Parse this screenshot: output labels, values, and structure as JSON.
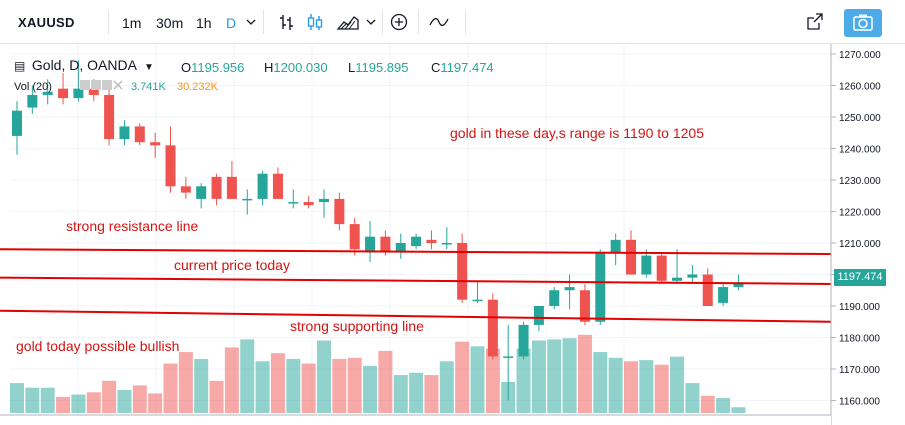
{
  "toolbar": {
    "symbol": "XAUUSD",
    "timeframes": [
      "1m",
      "30m",
      "1h",
      "D"
    ],
    "active_timeframe": "D"
  },
  "legend": {
    "title": "Gold, D, OANDA",
    "open_label": "O",
    "open": "1195.956",
    "high_label": "H",
    "high": "1200.030",
    "low_label": "L",
    "low": "1195.895",
    "close_label": "C",
    "close": "1197.474",
    "volume_label": "Vol (20)",
    "volume_value": "3.741K",
    "volume_ma": "30.232K"
  },
  "price_axis": {
    "ticks": [
      "1270.000",
      "1260.000",
      "1250.000",
      "1240.000",
      "1230.000",
      "1220.000",
      "1210.000",
      "1200.000",
      "1190.000",
      "1180.000",
      "1170.000",
      "1160.000"
    ],
    "current_price": "1197.474"
  },
  "annotations": {
    "range_note": "gold in these day,s range is 1190  to 1205",
    "resistance": "strong resistance line",
    "current": "current price today",
    "support": "strong supporting line",
    "bullish": "gold today possible bullish"
  },
  "colors": {
    "up": "#26a69a",
    "down": "#ef5350",
    "line": "#e50000",
    "accent": "#2196f3"
  },
  "chart_data": {
    "type": "candlestick",
    "ylim": [
      1155,
      1272
    ],
    "candles": [
      {
        "o": 1244,
        "h": 1255,
        "l": 1238,
        "c": 1252
      },
      {
        "o": 1253,
        "h": 1260,
        "l": 1251,
        "c": 1257
      },
      {
        "o": 1257,
        "h": 1262,
        "l": 1254,
        "c": 1258
      },
      {
        "o": 1259,
        "h": 1264,
        "l": 1254,
        "c": 1256
      },
      {
        "o": 1256,
        "h": 1268,
        "l": 1255,
        "c": 1259
      },
      {
        "o": 1259,
        "h": 1262,
        "l": 1255,
        "c": 1257
      },
      {
        "o": 1257,
        "h": 1259,
        "l": 1241,
        "c": 1243
      },
      {
        "o": 1243,
        "h": 1249,
        "l": 1241,
        "c": 1247
      },
      {
        "o": 1247,
        "h": 1248,
        "l": 1241,
        "c": 1242
      },
      {
        "o": 1242,
        "h": 1245,
        "l": 1237,
        "c": 1241
      },
      {
        "o": 1241,
        "h": 1247,
        "l": 1226,
        "c": 1228
      },
      {
        "o": 1228,
        "h": 1231,
        "l": 1224,
        "c": 1226
      },
      {
        "o": 1224,
        "h": 1229,
        "l": 1221,
        "c": 1228
      },
      {
        "o": 1231,
        "h": 1232,
        "l": 1222,
        "c": 1224
      },
      {
        "o": 1231,
        "h": 1236,
        "l": 1224,
        "c": 1224
      },
      {
        "o": 1224,
        "h": 1227,
        "l": 1219,
        "c": 1224
      },
      {
        "o": 1224,
        "h": 1233,
        "l": 1222,
        "c": 1232
      },
      {
        "o": 1232,
        "h": 1234,
        "l": 1224,
        "c": 1224
      },
      {
        "o": 1223,
        "h": 1227,
        "l": 1221,
        "c": 1223
      },
      {
        "o": 1223,
        "h": 1225,
        "l": 1221,
        "c": 1222
      },
      {
        "o": 1223,
        "h": 1227,
        "l": 1218,
        "c": 1224
      },
      {
        "o": 1224,
        "h": 1226,
        "l": 1214,
        "c": 1216
      },
      {
        "o": 1216,
        "h": 1218,
        "l": 1206,
        "c": 1208
      },
      {
        "o": 1207,
        "h": 1217,
        "l": 1204,
        "c": 1212
      },
      {
        "o": 1212,
        "h": 1214,
        "l": 1206,
        "c": 1207
      },
      {
        "o": 1207,
        "h": 1213,
        "l": 1205,
        "c": 1210
      },
      {
        "o": 1209,
        "h": 1213,
        "l": 1208,
        "c": 1212
      },
      {
        "o": 1211,
        "h": 1214,
        "l": 1208,
        "c": 1210
      },
      {
        "o": 1210,
        "h": 1215,
        "l": 1208,
        "c": 1210
      },
      {
        "o": 1210,
        "h": 1213,
        "l": 1191,
        "c": 1192
      },
      {
        "o": 1192,
        "h": 1198,
        "l": 1191,
        "c": 1192
      },
      {
        "o": 1192,
        "h": 1194,
        "l": 1173,
        "c": 1174
      },
      {
        "o": 1174,
        "h": 1184,
        "l": 1160,
        "c": 1174
      },
      {
        "o": 1174,
        "h": 1185,
        "l": 1173,
        "c": 1184
      },
      {
        "o": 1184,
        "h": 1190,
        "l": 1182,
        "c": 1190
      },
      {
        "o": 1190,
        "h": 1196,
        "l": 1189,
        "c": 1195
      },
      {
        "o": 1195,
        "h": 1200,
        "l": 1189,
        "c": 1196
      },
      {
        "o": 1195,
        "h": 1197,
        "l": 1184,
        "c": 1185
      },
      {
        "o": 1185,
        "h": 1208,
        "l": 1184,
        "c": 1207
      },
      {
        "o": 1207,
        "h": 1213,
        "l": 1203,
        "c": 1211
      },
      {
        "o": 1211,
        "h": 1214,
        "l": 1200,
        "c": 1200
      },
      {
        "o": 1200,
        "h": 1208,
        "l": 1199,
        "c": 1206
      },
      {
        "o": 1206,
        "h": 1207,
        "l": 1197,
        "c": 1198
      },
      {
        "o": 1198,
        "h": 1208,
        "l": 1197,
        "c": 1199
      },
      {
        "o": 1199,
        "h": 1203,
        "l": 1197,
        "c": 1200
      },
      {
        "o": 1200,
        "h": 1202,
        "l": 1190,
        "c": 1190
      },
      {
        "o": 1191,
        "h": 1197,
        "l": 1190,
        "c": 1196
      },
      {
        "o": 1196,
        "h": 1200,
        "l": 1195,
        "c": 1197.474
      }
    ],
    "volume": [
      0,
      0,
      0,
      0,
      0,
      0,
      0,
      0,
      0,
      0,
      0,
      0,
      0,
      0,
      0,
      0,
      0,
      0,
      0,
      0,
      0,
      0,
      0,
      0,
      0,
      0,
      0,
      0,
      0,
      0,
      0,
      0,
      0,
      0,
      0,
      0,
      0,
      0,
      0,
      0,
      0,
      0,
      0,
      0,
      0,
      0,
      0,
      0
    ],
    "volume_rel": [
      26,
      22,
      22,
      14,
      16,
      18,
      28,
      20,
      24,
      17,
      43,
      53,
      47,
      28,
      57,
      64,
      45,
      52,
      47,
      43,
      63,
      47,
      48,
      41,
      54,
      33,
      35,
      33,
      45,
      62,
      58,
      56,
      27,
      56,
      63,
      64,
      65,
      68,
      53,
      48,
      45,
      46,
      42,
      49,
      26,
      15,
      13,
      5
    ],
    "horizontal_lines": [
      {
        "label": "strong resistance line",
        "left": 1208.0,
        "right": 1206.5
      },
      {
        "label": "current price today",
        "left": 1199.0,
        "right": 1197.0
      },
      {
        "label": "strong supporting line",
        "left": 1188.5,
        "right": 1185.0
      }
    ]
  }
}
